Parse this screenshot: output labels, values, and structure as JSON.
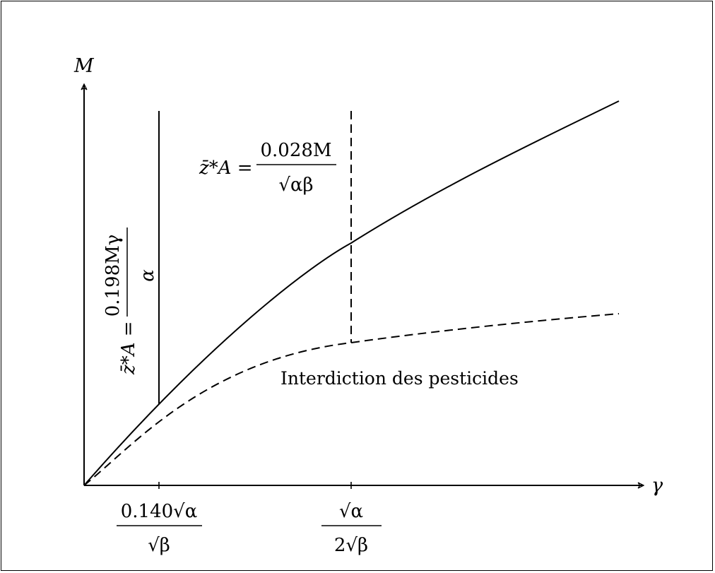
{
  "axes": {
    "y_label": "M",
    "x_label": "γ"
  },
  "x_ticks": [
    {
      "num": "0.140√α",
      "den": "√β"
    },
    {
      "num": "√α",
      "den": "2√β"
    }
  ],
  "formula_vertical": {
    "lhs": "z̄*A =",
    "num": "0.198Mγ",
    "den": "α"
  },
  "formula_dashed": {
    "lhs": "z̄*A =",
    "num": "0.028M",
    "den": "√αβ"
  },
  "region_label": "Interdiction des pesticides",
  "curves": [
    {
      "name": "solid",
      "style": "solid"
    },
    {
      "name": "dashed",
      "style": "dashed"
    }
  ]
}
